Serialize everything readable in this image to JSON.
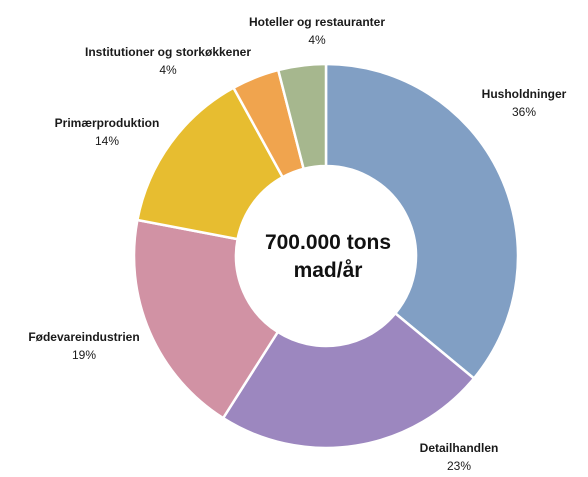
{
  "chart_data": {
    "type": "pie",
    "donut": true,
    "center_label": [
      "700.000 tons",
      "mad/år"
    ],
    "categories": [
      "Husholdninger",
      "Detailhandlen",
      "Fødevareindustrien",
      "Primærproduktion",
      "Institutioner  og storkøkkener",
      "Hoteller  og restauranter"
    ],
    "values": [
      36,
      23,
      19,
      14,
      4,
      4
    ],
    "value_labels": [
      "36%",
      "23%",
      "19%",
      "14%",
      "4%",
      "4%"
    ],
    "colors": [
      "#819fc4",
      "#9c87bf",
      "#d192a4",
      "#e7bd30",
      "#f0a44e",
      "#a6b78e"
    ],
    "start_angle_deg": 0,
    "direction": "clockwise",
    "label_placement": "outside"
  }
}
